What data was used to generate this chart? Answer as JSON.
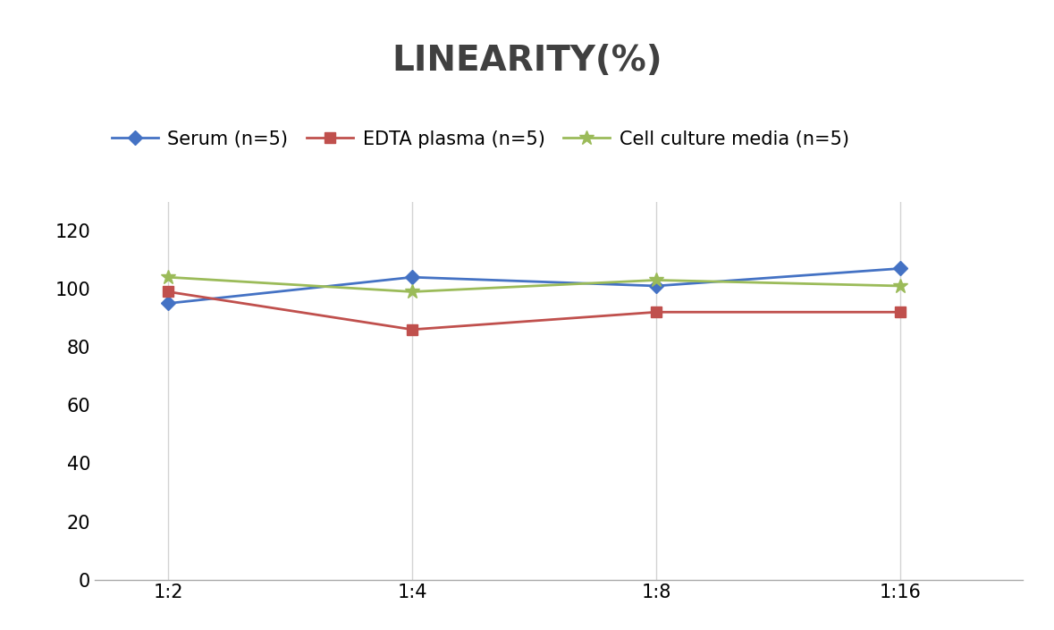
{
  "title": "LINEARITY(%)",
  "x_labels": [
    "1:2",
    "1:4",
    "1:8",
    "1:16"
  ],
  "x_positions": [
    0,
    1,
    2,
    3
  ],
  "series": [
    {
      "label": "Serum (n=5)",
      "values": [
        95,
        104,
        101,
        107
      ],
      "color": "#4472C4",
      "marker": "D",
      "marker_size": 8,
      "linewidth": 2.0
    },
    {
      "label": "EDTA plasma (n=5)",
      "values": [
        99,
        86,
        92,
        92
      ],
      "color": "#C0504D",
      "marker": "s",
      "marker_size": 8,
      "linewidth": 2.0
    },
    {
      "label": "Cell culture media (n=5)",
      "values": [
        104,
        99,
        103,
        101
      ],
      "color": "#9BBB59",
      "marker": "*",
      "marker_size": 12,
      "linewidth": 2.0
    }
  ],
  "ylim": [
    0,
    130
  ],
  "yticks": [
    0,
    20,
    40,
    60,
    80,
    100,
    120
  ],
  "title_fontsize": 28,
  "title_color": "#404040",
  "tick_fontsize": 15,
  "legend_fontsize": 15,
  "background_color": "#ffffff",
  "grid_color": "#d3d3d3",
  "xlim": [
    -0.3,
    3.5
  ]
}
